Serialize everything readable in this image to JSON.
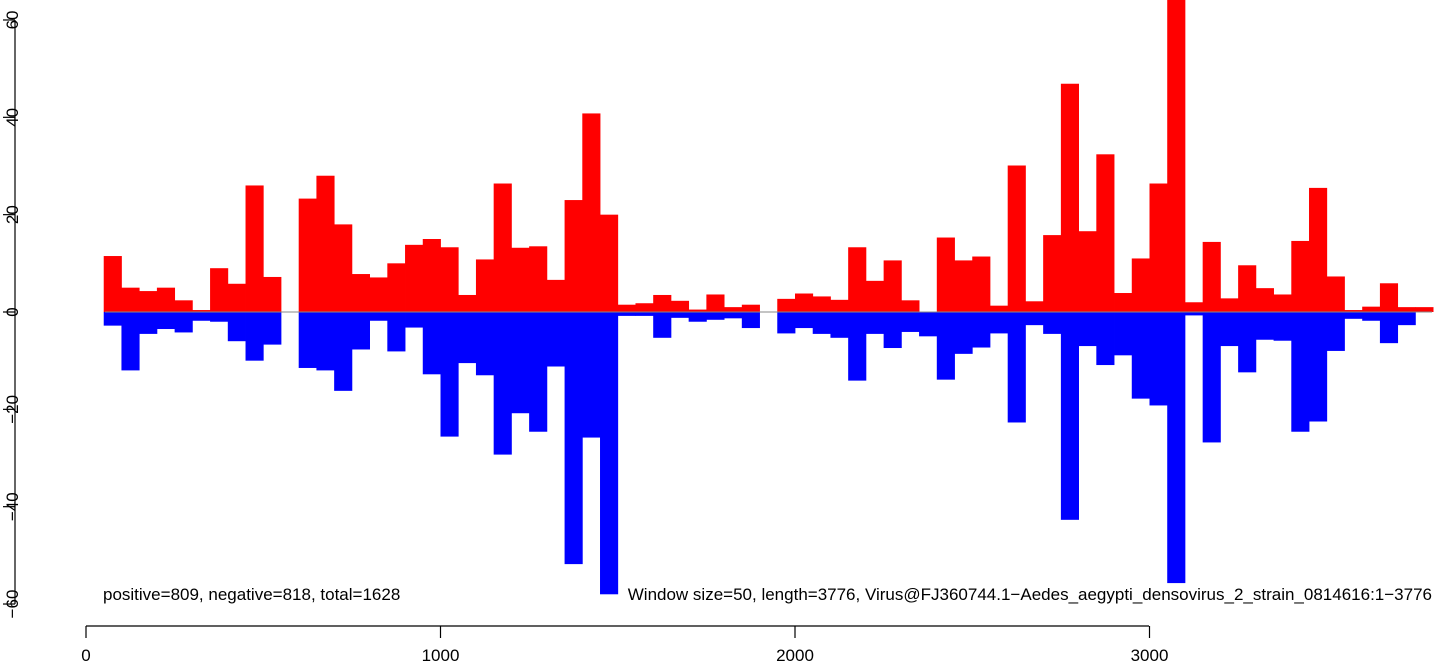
{
  "chart_data": {
    "type": "bar",
    "window_size": 50,
    "x_start": 50,
    "xlim": [
      0,
      3776
    ],
    "ylim": [
      -60,
      60
    ],
    "x_ticks": [
      0,
      1000,
      2000,
      3000
    ],
    "y_ticks": [
      -60,
      -40,
      -20,
      0,
      20,
      40,
      60
    ],
    "x_tick_labels": [
      "0",
      "1000",
      "2000",
      "3000"
    ],
    "y_tick_labels": [
      "−60",
      "−40",
      "−20",
      "0",
      "20",
      "40",
      "60"
    ],
    "grid": false,
    "legend": "none",
    "series": [
      {
        "color": "#ff0000",
        "values": [
          11.5,
          5,
          4.3,
          5,
          2.4,
          0.4,
          9,
          5.8,
          26,
          7.2,
          0,
          23.3,
          28,
          18,
          7.8,
          7.1,
          10,
          13.8,
          15,
          13.3,
          3.5,
          10.8,
          26.4,
          13.2,
          13.5,
          6.6,
          23,
          40.8,
          20,
          1.5,
          1.8,
          3.5,
          2.3,
          0.5,
          3.6,
          1,
          1.5,
          0,
          2.7,
          3.8,
          3.2,
          2.5,
          13.3,
          6.4,
          10.6,
          2.4,
          0,
          15.3,
          10.6,
          11.4,
          1.3,
          30.1,
          2.2,
          15.8,
          46.9,
          16.6,
          32.4,
          3.9,
          11,
          26.4,
          66,
          2,
          14.4,
          2.8,
          9.6,
          4.9,
          3.6,
          14.6,
          25.5,
          7.3,
          0.4,
          1.1,
          5.9,
          1,
          1
        ]
      },
      {
        "color": "#0000ff",
        "values": [
          -2.8,
          -12,
          -4.5,
          -3.5,
          -4.2,
          -1.8,
          -2,
          -6,
          -10,
          -6.7,
          0,
          -11.5,
          -12,
          -16.2,
          -7.7,
          -1.8,
          -8.1,
          -3.2,
          -12.8,
          -25.6,
          -10.5,
          -13,
          -29.3,
          -20.8,
          -24.6,
          -11.2,
          -51.8,
          -25.8,
          -58,
          -0.8,
          -0.8,
          -5.3,
          -1.2,
          -2,
          -1.6,
          -1.3,
          -3.3,
          0,
          -4.4,
          -3.3,
          -4.5,
          -5.3,
          -14.1,
          -4.5,
          -7.4,
          -4.1,
          -5,
          -13.9,
          -8.6,
          -7.3,
          -4.4,
          -22.7,
          -2.7,
          -4.5,
          -42.7,
          -7,
          -10.9,
          -8.9,
          -17.8,
          -19.2,
          -55.7,
          -0.7,
          -26.8,
          -7,
          -12.4,
          -5.7,
          -5.9,
          -24.6,
          -22.5,
          -8,
          -1.4,
          -1.8,
          -6.4,
          -2.7,
          0
        ]
      }
    ]
  },
  "caption_left": "positive=809, negative=818, total=1628",
  "caption_right": "Window size=50, length=3776, Virus@FJ360744.1−Aedes_aegypti_densovirus_2_strain_0814616:1−3776"
}
